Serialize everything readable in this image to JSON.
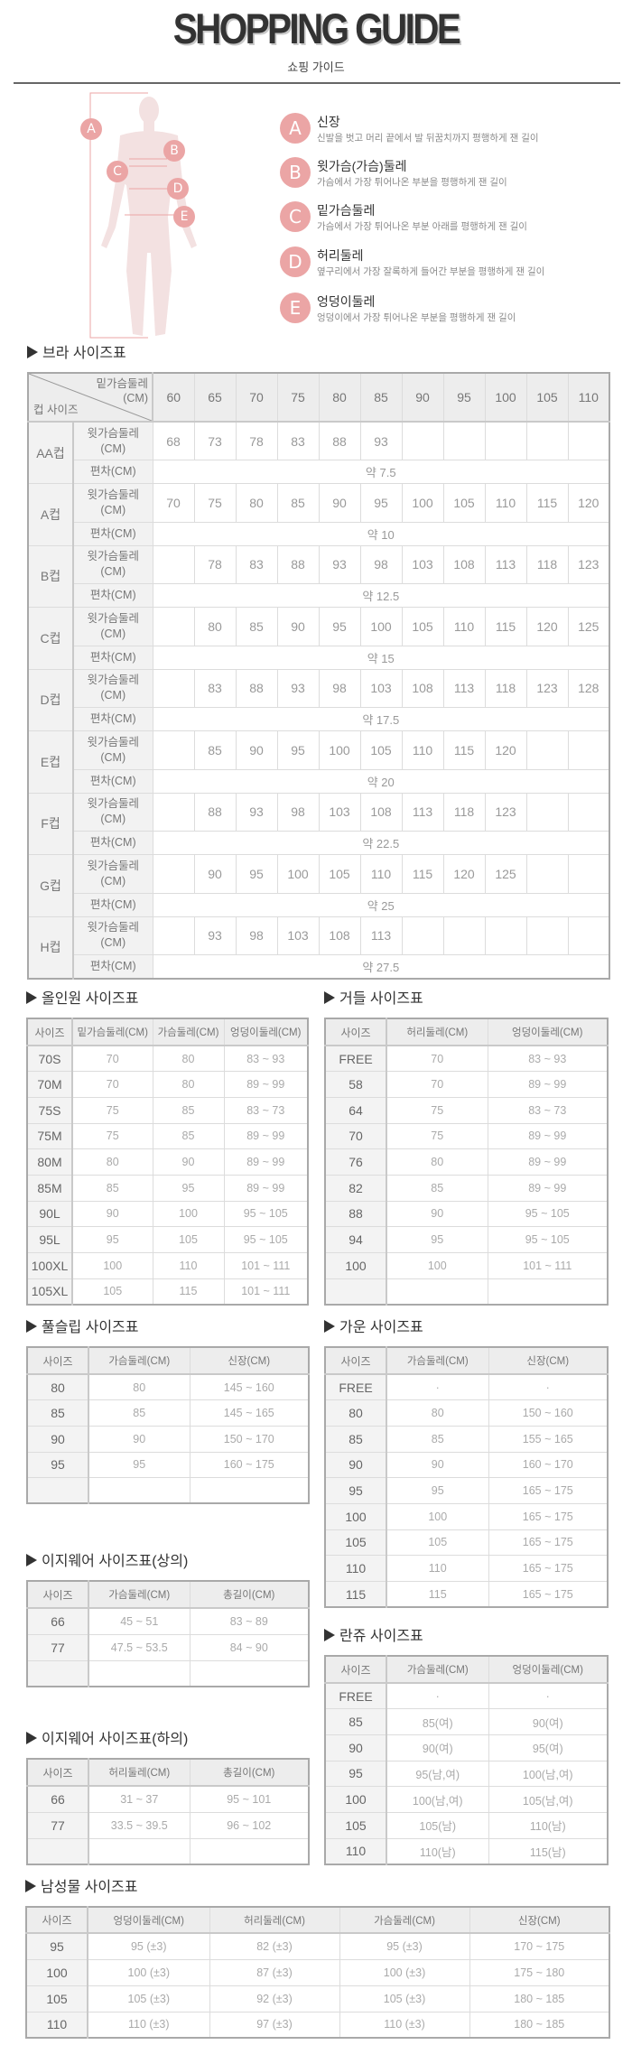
{
  "header": {
    "title": "SHOPPING GUIDE",
    "subtitle": "쇼핑 가이드"
  },
  "colors": {
    "accent_pink": "#eba5a5",
    "figure": "#f3e1e1",
    "header_bg": "#ededed"
  },
  "figure_markers": [
    "A",
    "B",
    "C",
    "D",
    "E"
  ],
  "guide": [
    {
      "letter": "A",
      "title": "신장",
      "desc": "신발을 벗고 머리 끝에서 발 뒤꿈치까지 평행하게 잰 길이"
    },
    {
      "letter": "B",
      "title": "윗가슴(가슴)둘레",
      "desc": "가슴에서 가장 튀어나온 부분을 평행하게 잰 길이"
    },
    {
      "letter": "C",
      "title": "밑가슴둘레",
      "desc": "가슴에서 가장 튀어나온 부분 아래를 평행하게 잰 길이"
    },
    {
      "letter": "D",
      "title": "허리둘레",
      "desc": "옆구리에서 가장 잘록하게 들어간 부분을 평행하게 잰 길이"
    },
    {
      "letter": "E",
      "title": "엉덩이둘레",
      "desc": "엉덩이에서 가장 튀어나온 부분을 평행하게 잰 길이"
    }
  ],
  "bra": {
    "title": "브라 사이즈표",
    "corner_top": "밑가슴둘레",
    "corner_unit": "(CM)",
    "corner_bottom": "컵 사이즈",
    "row_label": "윗가슴둘레",
    "row_unit": "(CM)",
    "dev_label": "편차(CM)",
    "columns": [
      "60",
      "65",
      "70",
      "75",
      "80",
      "85",
      "90",
      "95",
      "100",
      "105",
      "110"
    ],
    "cups": [
      {
        "name": "AA컵",
        "values": [
          "68",
          "73",
          "78",
          "83",
          "88",
          "93",
          "",
          "",
          "",
          "",
          ""
        ],
        "deviation": "약 7.5"
      },
      {
        "name": "A컵",
        "values": [
          "70",
          "75",
          "80",
          "85",
          "90",
          "95",
          "100",
          "105",
          "110",
          "115",
          "120"
        ],
        "deviation": "약 10"
      },
      {
        "name": "B컵",
        "values": [
          "",
          "78",
          "83",
          "88",
          "93",
          "98",
          "103",
          "108",
          "113",
          "118",
          "123"
        ],
        "deviation": "약 12.5"
      },
      {
        "name": "C컵",
        "values": [
          "",
          "80",
          "85",
          "90",
          "95",
          "100",
          "105",
          "110",
          "115",
          "120",
          "125"
        ],
        "deviation": "약 15"
      },
      {
        "name": "D컵",
        "values": [
          "",
          "83",
          "88",
          "93",
          "98",
          "103",
          "108",
          "113",
          "118",
          "123",
          "128"
        ],
        "deviation": "약 17.5"
      },
      {
        "name": "E컵",
        "values": [
          "",
          "85",
          "90",
          "95",
          "100",
          "105",
          "110",
          "115",
          "120",
          "",
          ""
        ],
        "deviation": "약 20"
      },
      {
        "name": "F컵",
        "values": [
          "",
          "88",
          "93",
          "98",
          "103",
          "108",
          "113",
          "118",
          "123",
          "",
          ""
        ],
        "deviation": "약 22.5"
      },
      {
        "name": "G컵",
        "values": [
          "",
          "90",
          "95",
          "100",
          "105",
          "110",
          "115",
          "120",
          "125",
          "",
          ""
        ],
        "deviation": "약 25"
      },
      {
        "name": "H컵",
        "values": [
          "",
          "93",
          "98",
          "103",
          "108",
          "113",
          "",
          "",
          "",
          "",
          ""
        ],
        "deviation": "약 27.5"
      }
    ]
  },
  "tables": {
    "allinone": {
      "title": "올인원 사이즈표",
      "headers": [
        "사이즈",
        "밑가슴둘레(CM)",
        "가슴둘레(CM)",
        "엉덩이둘레(CM)"
      ],
      "rows": [
        [
          "70S",
          "70",
          "80",
          "83 ~ 93"
        ],
        [
          "70M",
          "70",
          "80",
          "89 ~ 99"
        ],
        [
          "75S",
          "75",
          "85",
          "83 ~ 73"
        ],
        [
          "75M",
          "75",
          "85",
          "89 ~ 99"
        ],
        [
          "80M",
          "80",
          "90",
          "89 ~ 99"
        ],
        [
          "85M",
          "85",
          "95",
          "89 ~ 99"
        ],
        [
          "90L",
          "90",
          "100",
          "95 ~ 105"
        ],
        [
          "95L",
          "95",
          "105",
          "95 ~ 105"
        ],
        [
          "100XL",
          "100",
          "110",
          "101 ~ 111"
        ],
        [
          "105XL",
          "105",
          "115",
          "101 ~ 111"
        ]
      ]
    },
    "girdle": {
      "title": "거들 사이즈표",
      "headers": [
        "사이즈",
        "허리둘레(CM)",
        "엉덩이둘레(CM)"
      ],
      "rows": [
        [
          "FREE",
          "70",
          "83 ~ 93"
        ],
        [
          "58",
          "70",
          "89 ~ 99"
        ],
        [
          "64",
          "75",
          "83 ~ 73"
        ],
        [
          "70",
          "75",
          "89 ~ 99"
        ],
        [
          "76",
          "80",
          "89 ~ 99"
        ],
        [
          "82",
          "85",
          "89 ~ 99"
        ],
        [
          "88",
          "90",
          "95 ~ 105"
        ],
        [
          "94",
          "95",
          "95 ~ 105"
        ],
        [
          "100",
          "100",
          "101 ~ 111"
        ],
        [
          "",
          "",
          ""
        ]
      ]
    },
    "fullslip": {
      "title": "풀슬립 사이즈표",
      "headers": [
        "사이즈",
        "가슴둘레(CM)",
        "신장(CM)"
      ],
      "rows": [
        [
          "80",
          "80",
          "145 ~ 160"
        ],
        [
          "85",
          "85",
          "145 ~ 165"
        ],
        [
          "90",
          "90",
          "150 ~ 170"
        ],
        [
          "95",
          "95",
          "160 ~ 175"
        ],
        [
          "",
          "",
          ""
        ]
      ]
    },
    "gown": {
      "title": "가운 사이즈표",
      "headers": [
        "사이즈",
        "가슴둘레(CM)",
        "신장(CM)"
      ],
      "rows": [
        [
          "FREE",
          "·",
          "·"
        ],
        [
          "80",
          "80",
          "150 ~ 160"
        ],
        [
          "85",
          "85",
          "155 ~ 165"
        ],
        [
          "90",
          "90",
          "160 ~ 170"
        ],
        [
          "95",
          "95",
          "165 ~ 175"
        ],
        [
          "100",
          "100",
          "165 ~ 175"
        ],
        [
          "105",
          "105",
          "165 ~ 175"
        ],
        [
          "110",
          "110",
          "165 ~ 175"
        ],
        [
          "115",
          "115",
          "165 ~ 175"
        ]
      ]
    },
    "easy_top": {
      "title": "이지웨어 사이즈표(상의)",
      "headers": [
        "사이즈",
        "가슴둘레(CM)",
        "총길이(CM)"
      ],
      "rows": [
        [
          "66",
          "45 ~ 51",
          "83 ~ 89"
        ],
        [
          "77",
          "47.5 ~ 53.5",
          "84 ~ 90"
        ],
        [
          "",
          "",
          ""
        ]
      ]
    },
    "easy_bottom": {
      "title": "이지웨어 사이즈표(하의)",
      "headers": [
        "사이즈",
        "허리둘레(CM)",
        "총길이(CM)"
      ],
      "rows": [
        [
          "66",
          "31 ~ 37",
          "95 ~ 101"
        ],
        [
          "77",
          "33.5 ~ 39.5",
          "96 ~ 102"
        ],
        [
          "",
          "",
          ""
        ]
      ]
    },
    "lingerie": {
      "title": "란쥬 사이즈표",
      "headers": [
        "사이즈",
        "가슴둘레(CM)",
        "엉덩이둘레(CM)"
      ],
      "rows": [
        [
          "FREE",
          "·",
          "·"
        ],
        [
          "85",
          "85(여)",
          "90(여)"
        ],
        [
          "90",
          "90(여)",
          "95(여)"
        ],
        [
          "95",
          "95(남,여)",
          "100(남,여)"
        ],
        [
          "100",
          "100(남,여)",
          "105(남,여)"
        ],
        [
          "105",
          "105(남)",
          "110(남)"
        ],
        [
          "110",
          "110(남)",
          "115(남)"
        ]
      ]
    },
    "men": {
      "title": "남성물 사이즈표",
      "headers": [
        "사이즈",
        "엉덩이둘레(CM)",
        "허리둘레(CM)",
        "가슴둘레(CM)",
        "신장(CM)"
      ],
      "rows": [
        [
          "95",
          "95 (±3)",
          "82 (±3)",
          "95 (±3)",
          "170 ~ 175"
        ],
        [
          "100",
          "100 (±3)",
          "87 (±3)",
          "100 (±3)",
          "175 ~ 180"
        ],
        [
          "105",
          "105 (±3)",
          "92 (±3)",
          "105 (±3)",
          "180 ~ 185"
        ],
        [
          "110",
          "110 (±3)",
          "97 (±3)",
          "110 (±3)",
          "180 ~ 185"
        ]
      ]
    }
  }
}
